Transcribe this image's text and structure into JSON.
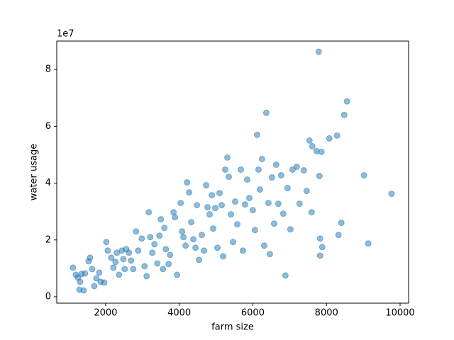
{
  "chart_data": {
    "type": "scatter",
    "x_label": "farm size",
    "y_label": "water usage",
    "y_offset_label": "1e7",
    "color": "#1f77b4",
    "alpha": 0.5,
    "xlim": [
      673,
      10231
    ],
    "ylim": [
      -2250000,
      90000000
    ],
    "xticks": [
      2000,
      4000,
      6000,
      8000,
      10000
    ],
    "yticks": [
      0,
      {
        "value": 20000000,
        "label": "2"
      },
      {
        "value": 40000000,
        "label": "4"
      },
      {
        "value": 60000000,
        "label": "6"
      },
      {
        "value": 80000000,
        "label": "8"
      }
    ],
    "x": [
      1115,
      1192,
      1250,
      1308,
      1288,
      1404,
      1346,
      1442,
      1538,
      1577,
      1635,
      1692,
      1750,
      1827,
      1865,
      1962,
      2019,
      2058,
      2154,
      2212,
      2269,
      2308,
      2365,
      2442,
      2481,
      2519,
      2558,
      2635,
      2692,
      2750,
      2827,
      2885,
      2981,
      3058,
      3115,
      3173,
      3212,
      3269,
      3327,
      3404,
      3462,
      3500,
      3558,
      3596,
      3635,
      3712,
      3750,
      3846,
      3885,
      3942,
      4038,
      4077,
      4115,
      4173,
      4212,
      4269,
      4327,
      4385,
      4442,
      4481,
      4538,
      4615,
      4673,
      4731,
      4769,
      4827,
      4885,
      4923,
      4981,
      5038,
      5096,
      5154,
      5192,
      5250,
      5308,
      5346,
      5404,
      5462,
      5519,
      5577,
      5673,
      5731,
      5788,
      5846,
      5904,
      6000,
      6058,
      6115,
      6154,
      6192,
      6250,
      6308,
      6365,
      6423,
      6462,
      6519,
      6577,
      6635,
      6692,
      6769,
      6827,
      6885,
      6942,
      7019,
      7077,
      7192,
      7269,
      7385,
      7462,
      7538,
      7615,
      7731,
      7788,
      7808,
      7827,
      7865,
      7885,
      8077,
      8288,
      8327,
      8404,
      8481,
      8558,
      9019,
      9135,
      9769,
      7596,
      7827
    ],
    "values": [
      10250000,
      7750000,
      6750000,
      5250000,
      2500000,
      2250000,
      8000000,
      8250000,
      12500000,
      13750000,
      9750000,
      3750000,
      6500000,
      8500000,
      5250000,
      5000000,
      19250000,
      16250000,
      13750000,
      10250000,
      12250000,
      15500000,
      7750000,
      16250000,
      13250000,
      9750000,
      16750000,
      15500000,
      12750000,
      9750000,
      23000000,
      16250000,
      20500000,
      10750000,
      7250000,
      29750000,
      21000000,
      15500000,
      18500000,
      11750000,
      21500000,
      27250000,
      9750000,
      24250000,
      16750000,
      11500000,
      14750000,
      29750000,
      28000000,
      7750000,
      33000000,
      23000000,
      21000000,
      18000000,
      40250000,
      36750000,
      26250000,
      20250000,
      17250000,
      32250000,
      13000000,
      21750000,
      16250000,
      39250000,
      31500000,
      29000000,
      35750000,
      24000000,
      31250000,
      17250000,
      36500000,
      32250000,
      14250000,
      44750000,
      49000000,
      42250000,
      29000000,
      19250000,
      33500000,
      25500000,
      44750000,
      16250000,
      32500000,
      41250000,
      34750000,
      30500000,
      23500000,
      57000000,
      44750000,
      37750000,
      48500000,
      18000000,
      64750000,
      33000000,
      15000000,
      42000000,
      25750000,
      46500000,
      32750000,
      42750000,
      29250000,
      7500000,
      38250000,
      23750000,
      44750000,
      45750000,
      32750000,
      44500000,
      37250000,
      55000000,
      53000000,
      51250000,
      86250000,
      42500000,
      20500000,
      51000000,
      17500000,
      55750000,
      56750000,
      21750000,
      26000000,
      64000000,
      68750000,
      42750000,
      18750000,
      36250000,
      29750000,
      14500000
    ]
  }
}
